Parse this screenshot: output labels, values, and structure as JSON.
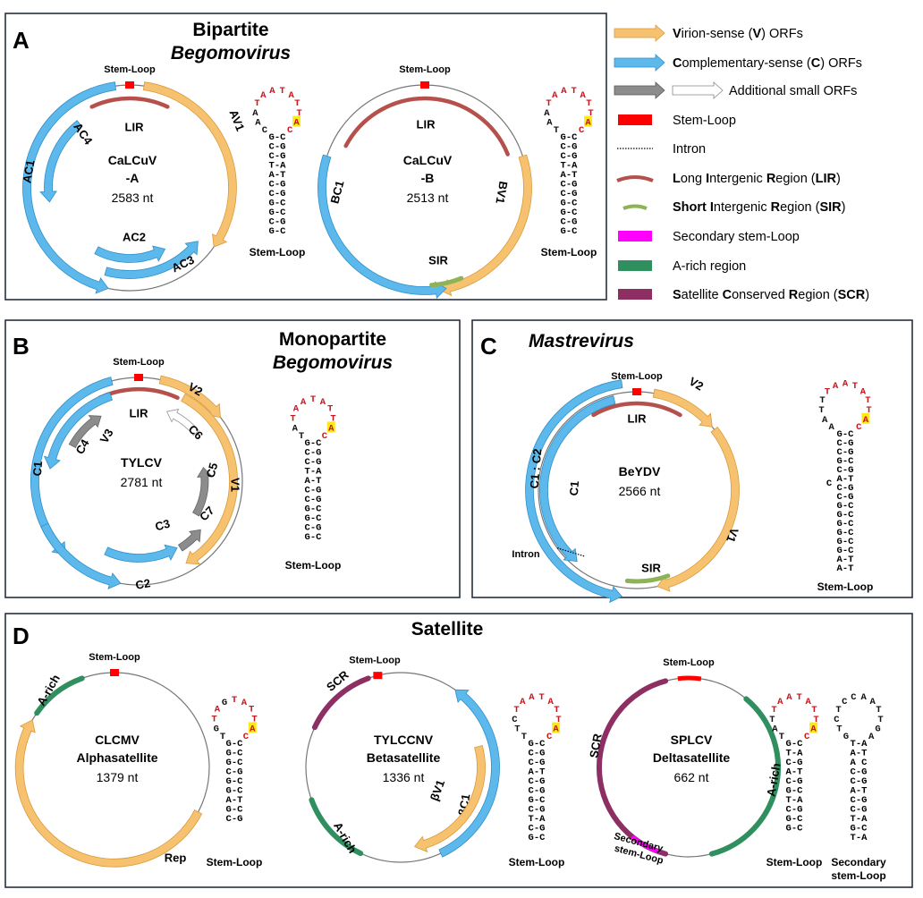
{
  "colors": {
    "virion": "#F7C26F",
    "complementary": "#5DB9EC",
    "additional": "#8C8C8C",
    "stem_loop": "#FF0000",
    "lir": "#B5504C",
    "sir": "#8DB356",
    "secondary": "#FF00FF",
    "a_rich": "#2F8F5E",
    "scr": "#8E2F63",
    "loop_red": "#C8161D",
    "highlight": "#FFE81A"
  },
  "legend": [
    {
      "icon": "yellow-arrow",
      "segments": [
        [
          "V",
          true
        ],
        [
          "irion-sense (",
          false
        ],
        [
          "V",
          true
        ],
        [
          ") ORFs",
          false
        ]
      ]
    },
    {
      "icon": "blue-arrow",
      "segments": [
        [
          "C",
          true
        ],
        [
          "omplementary-sense (",
          false
        ],
        [
          "C",
          true
        ],
        [
          ") ORFs",
          false
        ]
      ]
    },
    {
      "icon": "gray-and-white-arrows",
      "segments": [
        [
          "Additional small ORFs",
          false
        ]
      ]
    },
    {
      "icon": "red-rectangle",
      "segments": [
        [
          "Stem-Loop",
          false
        ]
      ]
    },
    {
      "icon": "dotted-line",
      "segments": [
        [
          "Intron",
          false
        ]
      ]
    },
    {
      "icon": "red-arc",
      "segments": [
        [
          "L",
          true
        ],
        [
          "ong ",
          false
        ],
        [
          "I",
          true
        ],
        [
          "ntergenic ",
          false
        ],
        [
          "R",
          true
        ],
        [
          "egion (",
          false
        ],
        [
          "LIR",
          true
        ],
        [
          ")",
          false
        ]
      ]
    },
    {
      "icon": "green-arc",
      "segments": [
        [
          "Short I",
          true
        ],
        [
          "ntergenic ",
          false
        ],
        [
          "R",
          true
        ],
        [
          "egion (",
          false
        ],
        [
          "SIR",
          true
        ],
        [
          ")",
          false
        ]
      ]
    },
    {
      "icon": "magenta-rectangle",
      "segments": [
        [
          "Secondary stem-Loop",
          false
        ]
      ]
    },
    {
      "icon": "green-rectangle",
      "segments": [
        [
          "A-rich region",
          false
        ]
      ]
    },
    {
      "icon": "purple-rectangle",
      "segments": [
        [
          "S",
          true
        ],
        [
          "atellite ",
          false
        ],
        [
          "C",
          true
        ],
        [
          "onserved ",
          false
        ],
        [
          "R",
          true
        ],
        [
          "egion (",
          false
        ],
        [
          "SCR",
          true
        ],
        [
          ")",
          false
        ]
      ]
    }
  ],
  "panels": {
    "A": {
      "letter": "A",
      "title": "Bipartite",
      "subtitle": "Begomovirus",
      "maps": [
        {
          "name": [
            "CaLCuV",
            "-A"
          ],
          "size": "2583 nt",
          "stem_loop_label": "Stem-Loop",
          "features": [
            "LIR",
            "AV1",
            "AC1",
            "AC4",
            "AC2",
            "AC3"
          ]
        },
        {
          "name": [
            "CaLCuV",
            "-B"
          ],
          "size": "2513 nt",
          "stem_loop_label": "Stem-Loop",
          "features": [
            "LIR",
            "BV1",
            "BC1",
            "SIR"
          ]
        }
      ],
      "stemloops": [
        {
          "label": [
            "Stem-Loop"
          ],
          "loop": [
            [
              "C",
              "k"
            ],
            [
              "A",
              "k"
            ],
            [
              "A",
              "k"
            ],
            [
              "T",
              "r"
            ],
            [
              "A",
              "r"
            ],
            [
              "A",
              "r"
            ],
            [
              "T",
              "r"
            ],
            [
              "A",
              "r"
            ],
            [
              "T",
              "r"
            ],
            [
              "T",
              "r"
            ],
            [
              "A",
              "h"
            ],
            [
              "C",
              "r"
            ]
          ],
          "stem": [
            "G-C",
            "C-G",
            "C-G",
            "T-A",
            "A-T",
            "C-G",
            "C-G",
            "G-C",
            "G-C",
            "C-G",
            "G-C"
          ]
        },
        {
          "label": [
            "Stem-Loop"
          ],
          "loop": [
            [
              "T",
              "k"
            ],
            [
              "A",
              "k"
            ],
            [
              "A",
              "k"
            ],
            [
              "T",
              "r"
            ],
            [
              "A",
              "r"
            ],
            [
              "A",
              "r"
            ],
            [
              "T",
              "r"
            ],
            [
              "A",
              "r"
            ],
            [
              "T",
              "r"
            ],
            [
              "T",
              "r"
            ],
            [
              "A",
              "h"
            ],
            [
              "C",
              "r"
            ]
          ],
          "stem": [
            "G-C",
            "C-G",
            "C-G",
            "T-A",
            "A-T",
            "C-G",
            "C-G",
            "G-C",
            "G-C",
            "C-G",
            "G-C"
          ]
        }
      ]
    },
    "B": {
      "letter": "B",
      "title": "Monopartite",
      "subtitle": "Begomovirus",
      "maps": [
        {
          "name": [
            "TYLCV"
          ],
          "size": "2781 nt",
          "stem_loop_label": "Stem-Loop",
          "features": [
            "LIR",
            "V2",
            "V1",
            "C6",
            "C5",
            "C7",
            "V3",
            "C4",
            "C1",
            "C3",
            "C2"
          ]
        }
      ],
      "stemloops": [
        {
          "label": [
            "Stem-Loop"
          ],
          "loop": [
            [
              "T",
              "k"
            ],
            [
              "A",
              "k"
            ],
            [
              "T",
              "r"
            ],
            [
              "A",
              "r"
            ],
            [
              "A",
              "r"
            ],
            [
              "T",
              "r"
            ],
            [
              "A",
              "r"
            ],
            [
              "T",
              "r"
            ],
            [
              "T",
              "r"
            ],
            [
              "A",
              "h"
            ],
            [
              "C",
              "r"
            ]
          ],
          "stem": [
            "G-C",
            "C-G",
            "C-G",
            "T-A",
            "A-T",
            "C-G",
            "C-G",
            "G-C",
            "G-C",
            "C-G",
            "G-C"
          ]
        }
      ]
    },
    "C": {
      "letter": "C",
      "title": "",
      "subtitle": "Mastrevirus",
      "maps": [
        {
          "name": [
            "BeYDV"
          ],
          "size": "2566 nt",
          "stem_loop_label": "Stem-Loop",
          "features": [
            "LIR",
            "V2",
            "V1",
            "C1 : C2",
            "C1",
            "Intron",
            "SIR"
          ]
        }
      ],
      "stemloops": [
        {
          "label": [
            "Stem-Loop"
          ],
          "bulge": "C",
          "loop": [
            [
              "A",
              "k"
            ],
            [
              "A",
              "k"
            ],
            [
              "T",
              "k"
            ],
            [
              "T",
              "k"
            ],
            [
              "T",
              "r"
            ],
            [
              "A",
              "r"
            ],
            [
              "A",
              "r"
            ],
            [
              "T",
              "r"
            ],
            [
              "A",
              "r"
            ],
            [
              "T",
              "r"
            ],
            [
              "T",
              "r"
            ],
            [
              "A",
              "h"
            ],
            [
              "C",
              "r"
            ]
          ],
          "stem": [
            "G-C",
            "C-G",
            "C-G",
            "G-C",
            "C-G",
            "A-T",
            "C-G",
            "C-G",
            "G-C",
            "G-C",
            "G-C",
            "G-C",
            "G-C",
            "G-C",
            "A-T",
            "A-T"
          ]
        }
      ]
    },
    "D": {
      "letter": "D",
      "title": "Satellite",
      "subtitle": "",
      "maps": [
        {
          "name": [
            "CLCMV",
            "Alphasatellite"
          ],
          "size": "1379 nt",
          "stem_loop_label": "Stem-Loop",
          "features": [
            "A-rich",
            "Rep"
          ]
        },
        {
          "name": [
            "TYLCCNV",
            "Betasatellite"
          ],
          "size": "1336 nt",
          "stem_loop_label": "Stem-Loop",
          "features": [
            "SCR",
            "A-rich",
            "βC1",
            "βV1"
          ]
        },
        {
          "name": [
            "SPLCV",
            "Deltasatellite"
          ],
          "size": "662 nt",
          "stem_loop_label": "Stem-Loop",
          "features": [
            "SCR",
            "A-rich",
            "Secondary stem-Loop"
          ]
        }
      ],
      "stemloops": [
        {
          "label": [
            "Stem-Loop"
          ],
          "loop": [
            [
              "T",
              "k"
            ],
            [
              "G",
              "k"
            ],
            [
              "T",
              "r"
            ],
            [
              "A",
              "r"
            ],
            [
              "G",
              "k"
            ],
            [
              "T",
              "r"
            ],
            [
              "A",
              "r"
            ],
            [
              "T",
              "r"
            ],
            [
              "T",
              "r"
            ],
            [
              "A",
              "h"
            ],
            [
              "C",
              "r"
            ]
          ],
          "stem": [
            "G-C",
            "G-C",
            "G-C",
            "C-G",
            "G-C",
            "G-C",
            "A-T",
            "G-C",
            "C-G"
          ]
        },
        {
          "label": [
            "Stem-Loop"
          ],
          "loop": [
            [
              "T",
              "k"
            ],
            [
              "T",
              "k"
            ],
            [
              "C",
              "k"
            ],
            [
              "T",
              "r"
            ],
            [
              "A",
              "r"
            ],
            [
              "A",
              "r"
            ],
            [
              "T",
              "r"
            ],
            [
              "A",
              "r"
            ],
            [
              "T",
              "r"
            ],
            [
              "T",
              "r"
            ],
            [
              "A",
              "h"
            ],
            [
              "C",
              "r"
            ]
          ],
          "stem": [
            "G-C",
            "C-G",
            "C-G",
            "A-T",
            "C-G",
            "C-G",
            "G-C",
            "C-G",
            "T-A",
            "C-G",
            "G-C"
          ]
        },
        {
          "label": [
            "Stem-Loop"
          ],
          "loop": [
            [
              "T",
              "k"
            ],
            [
              "A",
              "k"
            ],
            [
              "T",
              "k"
            ],
            [
              "T",
              "r"
            ],
            [
              "A",
              "r"
            ],
            [
              "A",
              "r"
            ],
            [
              "T",
              "r"
            ],
            [
              "A",
              "r"
            ],
            [
              "T",
              "r"
            ],
            [
              "T",
              "r"
            ],
            [
              "A",
              "h"
            ],
            [
              "C",
              "r"
            ]
          ],
          "stem": [
            "G-C",
            "T-A",
            "C-G",
            "A-T",
            "C-G",
            "G-C",
            "T-A",
            "C-G",
            "G-C",
            "G-C"
          ]
        },
        {
          "label": [
            "Secondary",
            "stem-Loop"
          ],
          "loop": [
            [
              "G",
              "k"
            ],
            [
              "T",
              "k"
            ],
            [
              "C",
              "k"
            ],
            [
              "T",
              "k"
            ],
            [
              "C",
              "k"
            ],
            [
              "C",
              "k"
            ],
            [
              "A",
              "k"
            ],
            [
              "A",
              "k"
            ],
            [
              "T",
              "k"
            ],
            [
              "T",
              "k"
            ],
            [
              "G",
              "k"
            ],
            [
              "A",
              "k"
            ]
          ],
          "stem": [
            "T-A",
            "A-T",
            "A   C",
            "C-G",
            "C-G",
            "A-T",
            "C-G",
            "C-G",
            "T-A",
            "G-C",
            "T-A"
          ]
        }
      ]
    }
  }
}
